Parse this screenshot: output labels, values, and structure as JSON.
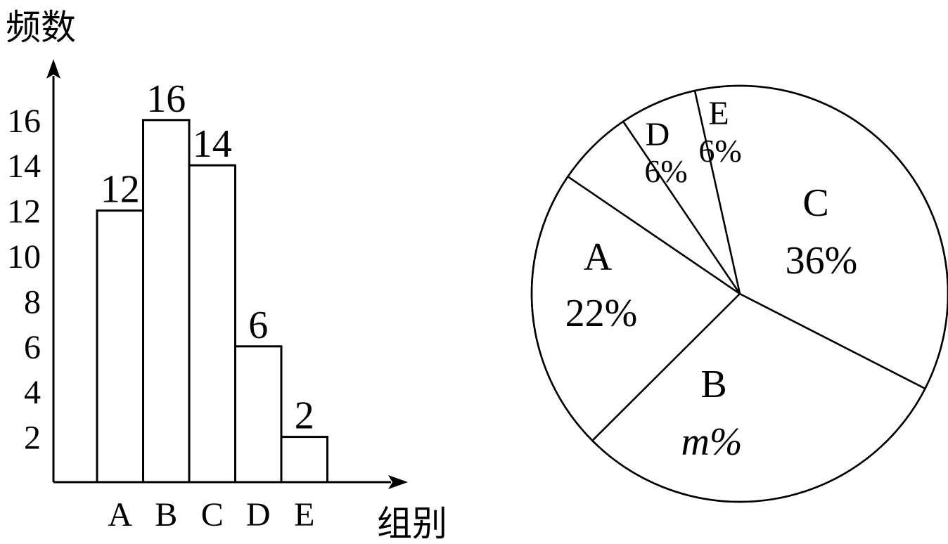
{
  "chart_data": [
    {
      "type": "bar",
      "ylabel": "频数",
      "xlabel": "组别",
      "categories": [
        "A",
        "B",
        "C",
        "D",
        "E"
      ],
      "values": [
        12,
        16,
        14,
        6,
        2
      ],
      "data_labels": [
        "12",
        "16",
        "14",
        "6",
        "2"
      ],
      "yticks": [
        "2",
        "4",
        "6",
        "8",
        "10",
        "12",
        "14",
        "16"
      ],
      "ylim": [
        0,
        18
      ],
      "grid": false
    },
    {
      "type": "pie",
      "slices": [
        {
          "label": "A",
          "percent_label": "22%",
          "value": 22
        },
        {
          "label": "B",
          "percent_label": "m%",
          "value": 30
        },
        {
          "label": "C",
          "percent_label": "36%",
          "value": 36
        },
        {
          "label": "E",
          "percent_label": "6%",
          "value": 6
        },
        {
          "label": "D",
          "percent_label": "6%",
          "value": 6
        }
      ]
    }
  ]
}
